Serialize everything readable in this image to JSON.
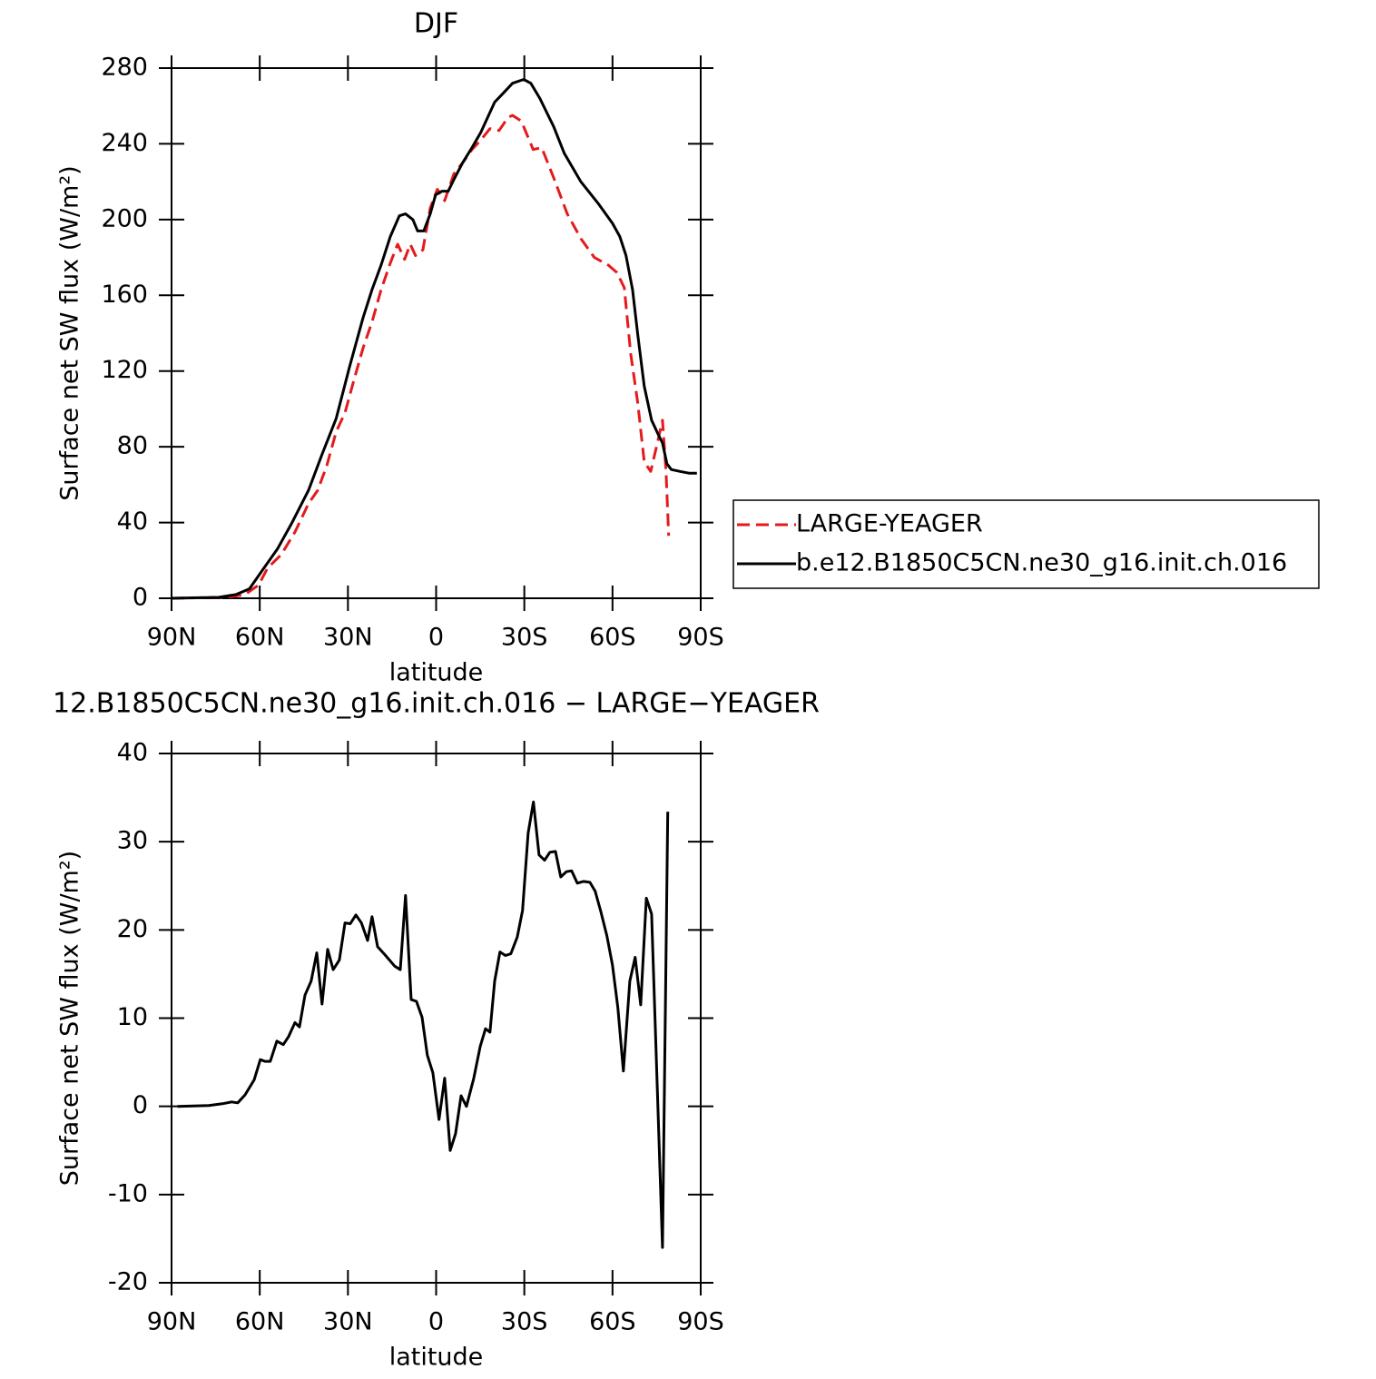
{
  "chart_data": [
    {
      "type": "line",
      "title": "DJF",
      "xlabel": "latitude",
      "ylabel": "Surface net SW flux (W/m²)",
      "xlim": [
        90,
        -90
      ],
      "ylim": [
        0,
        280
      ],
      "xticks": [
        {
          "value": 90,
          "label": "90N"
        },
        {
          "value": 60,
          "label": "60N"
        },
        {
          "value": 30,
          "label": "30N"
        },
        0,
        {
          "value": -30,
          "label": "30S"
        },
        {
          "value": -60,
          "label": "60S"
        },
        {
          "value": -90,
          "label": "90S"
        }
      ],
      "yticks": [
        0,
        40,
        80,
        120,
        160,
        200,
        240,
        280
      ],
      "legend": "right",
      "series": [
        {
          "name": "LARGE-YEAGER",
          "color": "#e41a1c",
          "line_style": "dashed",
          "x": [
            90,
            71.2,
            65,
            60.4,
            57.3,
            52.7,
            48,
            43.4,
            40.3,
            37.2,
            34,
            31,
            28,
            24.9,
            21.8,
            18.7,
            15.6,
            13.1,
            10.7,
            8.8,
            7,
            4.5,
            2,
            -0.4,
            -2.9,
            -6,
            -9,
            -12.2,
            -15.2,
            -18.3,
            -21.4,
            -24.5,
            -26,
            -29,
            -33,
            -35.9,
            -40,
            -44.6,
            -49.2,
            -53.8,
            -58.5,
            -61.5,
            -64,
            -66.2,
            -68.6,
            -70.8,
            -73,
            -74.8,
            -77,
            -78.2,
            -79.1
          ],
          "values": [
            0,
            0.5,
            2,
            7,
            16,
            23,
            35,
            50,
            57,
            70,
            88,
            98,
            115,
            132,
            146,
            163,
            177,
            187,
            179,
            187,
            181,
            184,
            206,
            216,
            210,
            224,
            230,
            237,
            242,
            248,
            247,
            254,
            255,
            252,
            237,
            238,
            222,
            203,
            190,
            180,
            176,
            172,
            164,
            129,
            103,
            72,
            67,
            79,
            94,
            67,
            33
          ]
        },
        {
          "name": "b.e12.B1850C5CN.ne30_g16.init.ch.016",
          "color": "#000000",
          "line_style": "solid",
          "x": [
            90,
            74,
            68,
            63.5,
            59,
            54,
            49,
            43.4,
            38.8,
            34,
            29.5,
            24.9,
            21.8,
            18.7,
            15.6,
            12.5,
            10.4,
            7.9,
            6.3,
            4.2,
            2,
            0.2,
            -2,
            -4.1,
            -6,
            -9,
            -12.2,
            -15.2,
            -19.9,
            -23,
            -26,
            -29.8,
            -32.2,
            -35.3,
            -40,
            -43.6,
            -49.2,
            -55.4,
            -60,
            -62.5,
            -64.6,
            -66.8,
            -68.6,
            -70.8,
            -73.3,
            -75.4,
            -77,
            -78.5,
            -80,
            -83,
            -86.2,
            -88.7
          ],
          "values": [
            0,
            0.5,
            2,
            5,
            15,
            26,
            40,
            57,
            76,
            95,
            122,
            148,
            163,
            176,
            191,
            202,
            203,
            200,
            194,
            194,
            203,
            213,
            215,
            215,
            221,
            230,
            238,
            246,
            262,
            267,
            272,
            274,
            272,
            264,
            249,
            235,
            220,
            208,
            198,
            191,
            181,
            163,
            139,
            112,
            94,
            87,
            82,
            71,
            68,
            67,
            66,
            66
          ]
        }
      ]
    },
    {
      "type": "line",
      "title": "12.B1850C5CN.ne30_g16.init.ch.016 − LARGE−YEAGER",
      "xlabel": "latitude",
      "ylabel": "Surface net SW flux (W/m²)",
      "xlim": [
        90,
        -90
      ],
      "ylim": [
        -20,
        40
      ],
      "xticks": [
        {
          "value": 90,
          "label": "90N"
        },
        {
          "value": 60,
          "label": "60N"
        },
        {
          "value": 30,
          "label": "30N"
        },
        0,
        {
          "value": -30,
          "label": "30S"
        },
        {
          "value": -60,
          "label": "60S"
        },
        {
          "value": -90,
          "label": "90S"
        }
      ],
      "yticks": [
        -20,
        -10,
        0,
        10,
        20,
        30,
        40
      ],
      "color": "#000000",
      "x": [
        88,
        77.3,
        72.7,
        69.6,
        67.5,
        65,
        61.9,
        59.8,
        58.2,
        56.4,
        54.2,
        52,
        50.2,
        48,
        46.5,
        44.6,
        42.5,
        40.6,
        38.8,
        36.9,
        35,
        32.9,
        31,
        29.2,
        27.3,
        25.4,
        23.3,
        21.8,
        19.9,
        17.2,
        14.1,
        12.2,
        10.4,
        8.5,
        6.7,
        4.8,
        3,
        1.1,
        -1,
        -2.9,
        -4.8,
        -6.6,
        -8.5,
        -10.3,
        -12.8,
        -15,
        -16.8,
        -18.3,
        -19.9,
        -21.7,
        -23.6,
        -25.4,
        -27.6,
        -29.4,
        -31.3,
        -33.1,
        -35,
        -36.9,
        -38.7,
        -40.6,
        -42.4,
        -44.3,
        -46.1,
        -48,
        -50.1,
        -52.3,
        -54.1,
        -56,
        -58.1,
        -60,
        -61.8,
        -63.7,
        -65.9,
        -67.7,
        -69.6,
        -71.5,
        -73.3,
        -77,
        -78.8
      ],
      "values": [
        0,
        0.1,
        0.3,
        0.5,
        0.4,
        1.3,
        3,
        5.3,
        5.1,
        5.1,
        7.4,
        7,
        7.9,
        9.5,
        9,
        12.6,
        14.2,
        17.4,
        11.6,
        17.8,
        15.5,
        16.6,
        20.8,
        20.7,
        21.7,
        20.8,
        18.8,
        21.5,
        18.1,
        17.1,
        15.9,
        15.5,
        23.9,
        12.1,
        11.9,
        10.1,
        5.8,
        3.8,
        -1.5,
        3.2,
        -5,
        -3.1,
        1.2,
        0,
        3.2,
        6.8,
        8.8,
        8.4,
        14.2,
        17.5,
        17.1,
        17.3,
        19.2,
        22.2,
        31,
        34.5,
        28.5,
        27.9,
        28.8,
        28.9,
        26,
        26.6,
        26.7,
        25.3,
        25.5,
        25.4,
        24.4,
        22.1,
        19.3,
        16,
        11.2,
        4,
        14.2,
        16.9,
        11.5,
        23.6,
        21.8,
        -16,
        33.4
      ]
    }
  ]
}
